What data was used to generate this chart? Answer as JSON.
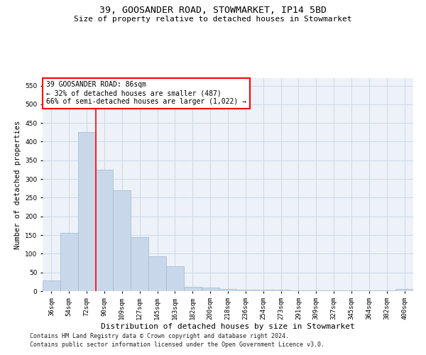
{
  "title": "39, GOOSANDER ROAD, STOWMARKET, IP14 5BD",
  "subtitle": "Size of property relative to detached houses in Stowmarket",
  "xlabel": "Distribution of detached houses by size in Stowmarket",
  "ylabel": "Number of detached properties",
  "footer_line1": "Contains HM Land Registry data © Crown copyright and database right 2024.",
  "footer_line2": "Contains public sector information licensed under the Open Government Licence v3.0.",
  "categories": [
    "36sqm",
    "54sqm",
    "72sqm",
    "90sqm",
    "109sqm",
    "127sqm",
    "145sqm",
    "163sqm",
    "182sqm",
    "200sqm",
    "218sqm",
    "236sqm",
    "254sqm",
    "273sqm",
    "291sqm",
    "309sqm",
    "327sqm",
    "345sqm",
    "364sqm",
    "382sqm",
    "400sqm"
  ],
  "values": [
    28,
    155,
    425,
    325,
    270,
    145,
    93,
    67,
    12,
    9,
    6,
    4,
    4,
    3,
    2,
    2,
    2,
    2,
    2,
    2,
    5
  ],
  "bar_color": "#c8d8ea",
  "bar_edge_color": "#a0b8d0",
  "vline_x": 2.5,
  "vline_color": "red",
  "annotation_text": "39 GOOSANDER ROAD: 86sqm\n← 32% of detached houses are smaller (487)\n66% of semi-detached houses are larger (1,022) →",
  "annotation_box_color": "red",
  "annotation_fill": "white",
  "ylim": [
    0,
    570
  ],
  "yticks": [
    0,
    50,
    100,
    150,
    200,
    250,
    300,
    350,
    400,
    450,
    500,
    550
  ],
  "grid_color": "#ccd8e8",
  "bg_color": "#edf2f8",
  "title_fontsize": 9.5,
  "subtitle_fontsize": 8,
  "xlabel_fontsize": 8,
  "ylabel_fontsize": 7.5,
  "tick_fontsize": 6.5,
  "annotation_fontsize": 7,
  "footer_fontsize": 6
}
